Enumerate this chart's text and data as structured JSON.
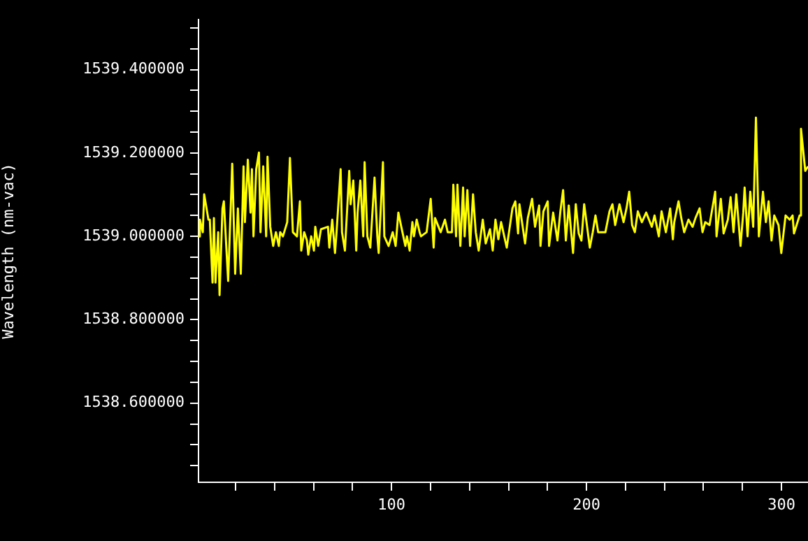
{
  "chart_data": {
    "type": "line",
    "ylabel": "Wavelength (nm-vac)",
    "marker": "none",
    "xlim": [
      1,
      313.6
    ],
    "xticks": [
      {
        "value": 20,
        "label": null
      },
      {
        "value": 40,
        "label": null
      },
      {
        "value": 60,
        "label": null
      },
      {
        "value": 80,
        "label": null
      },
      100,
      {
        "value": 120,
        "label": null
      },
      {
        "value": 140,
        "label": null
      },
      {
        "value": 160,
        "label": null
      },
      {
        "value": 180,
        "label": null
      },
      200,
      {
        "value": 220,
        "label": null
      },
      {
        "value": 240,
        "label": null
      },
      {
        "value": 260,
        "label": null
      },
      {
        "value": 280,
        "label": null
      },
      300
    ],
    "ylim": [
      1538.41,
      1539.52
    ],
    "yticks": [
      {
        "value": 1538.45,
        "label": null
      },
      {
        "value": 1538.5,
        "label": null
      },
      {
        "value": 1538.55,
        "label": null
      },
      {
        "value": 1538.6,
        "label": "1538.600000"
      },
      {
        "value": 1538.65,
        "label": null
      },
      {
        "value": 1538.7,
        "label": null
      },
      {
        "value": 1538.75,
        "label": null
      },
      {
        "value": 1538.8,
        "label": "1538.800000"
      },
      {
        "value": 1538.85,
        "label": null
      },
      {
        "value": 1538.9,
        "label": null
      },
      {
        "value": 1538.95,
        "label": null
      },
      {
        "value": 1539.0,
        "label": "1539.000000"
      },
      {
        "value": 1539.05,
        "label": null
      },
      {
        "value": 1539.1,
        "label": null
      },
      {
        "value": 1539.15,
        "label": null
      },
      {
        "value": 1539.2,
        "label": "1539.200000"
      },
      {
        "value": 1539.25,
        "label": null
      },
      {
        "value": 1539.3,
        "label": null
      },
      {
        "value": 1539.35,
        "label": null
      },
      {
        "value": 1539.4,
        "label": "1539.400000"
      },
      {
        "value": 1539.45,
        "label": null
      },
      {
        "value": 1539.5,
        "label": null
      }
    ],
    "x": [
      1.0,
      1.7,
      3.2,
      3.9,
      6.1,
      6.8,
      8.2,
      8.9,
      9.7,
      11.1,
      11.8,
      13.3,
      14.0,
      16.2,
      18.3,
      19.8,
      21.2,
      22.7,
      24.1,
      24.8,
      26.3,
      27.7,
      28.4,
      29.2,
      30.6,
      32.0,
      32.8,
      34.2,
      35.7,
      36.4,
      37.8,
      39.3,
      40.7,
      42.2,
      42.9,
      44.3,
      46.5,
      47.9,
      49.4,
      51.5,
      53.0,
      53.7,
      55.2,
      56.6,
      57.3,
      58.8,
      60.2,
      60.9,
      62.4,
      63.8,
      67.4,
      68.1,
      69.6,
      71.0,
      71.8,
      73.9,
      74.6,
      76.1,
      78.3,
      79.0,
      80.4,
      81.9,
      82.6,
      84.0,
      85.5,
      86.2,
      87.6,
      89.1,
      91.3,
      92.7,
      93.4,
      95.6,
      96.3,
      98.5,
      100.6,
      102.1,
      103.5,
      105.0,
      107.1,
      107.9,
      109.3,
      110.7,
      111.5,
      112.9,
      114.4,
      115.1,
      118.0,
      120.1,
      121.6,
      122.3,
      125.2,
      127.4,
      128.8,
      131.0,
      131.7,
      133.1,
      133.8,
      135.3,
      136.7,
      137.5,
      138.9,
      140.3,
      141.8,
      143.2,
      144.7,
      146.8,
      148.3,
      150.5,
      151.9,
      153.3,
      154.8,
      156.2,
      159.1,
      162.0,
      163.5,
      164.9,
      165.6,
      168.5,
      169.9,
      172.1,
      173.6,
      175.7,
      176.4,
      177.9,
      180.1,
      180.8,
      182.9,
      185.1,
      186.6,
      188.0,
      189.4,
      190.9,
      193.1,
      194.5,
      196.0,
      197.4,
      198.8,
      201.7,
      203.2,
      204.6,
      206.0,
      209.7,
      211.8,
      213.3,
      214.7,
      216.9,
      219.0,
      220.5,
      221.9,
      223.4,
      224.8,
      226.3,
      228.4,
      230.6,
      233.5,
      234.9,
      237.1,
      238.5,
      240.7,
      242.9,
      244.3,
      245.0,
      247.2,
      248.6,
      250.1,
      252.3,
      254.4,
      255.9,
      258.0,
      259.5,
      260.9,
      263.1,
      266.0,
      266.7,
      268.9,
      270.3,
      272.5,
      273.9,
      275.4,
      276.8,
      279.0,
      280.4,
      281.1,
      282.6,
      284.0,
      285.5,
      286.9,
      288.4,
      290.5,
      292.0,
      293.4,
      294.9,
      296.3,
      298.5,
      299.9,
      302.1,
      304.2,
      305.7,
      306.4,
      309.3,
      310.0,
      312.2,
      313.6
    ],
    "series": [
      {
        "color": "#ffff00",
        "values": [
          1539.0,
          1539.04,
          1539.01,
          1539.101,
          1539.04,
          1539.04,
          1538.889,
          1539.044,
          1538.889,
          1539.01,
          1538.859,
          1539.067,
          1539.084,
          1538.893,
          1539.174,
          1538.91,
          1539.067,
          1538.91,
          1539.168,
          1539.034,
          1539.184,
          1539.057,
          1539.161,
          1539.0,
          1539.161,
          1539.201,
          1539.01,
          1539.168,
          1539.0,
          1539.191,
          1539.023,
          1538.977,
          1539.01,
          1538.977,
          1539.01,
          1539.0,
          1539.034,
          1539.188,
          1539.01,
          1539.0,
          1539.084,
          1538.966,
          1539.01,
          1538.99,
          1538.956,
          1539.0,
          1538.966,
          1539.023,
          1538.977,
          1539.017,
          1539.023,
          1538.973,
          1539.04,
          1538.96,
          1539.01,
          1539.161,
          1539.01,
          1538.966,
          1539.157,
          1539.077,
          1539.134,
          1538.966,
          1539.057,
          1539.134,
          1539.0,
          1539.178,
          1539.0,
          1538.973,
          1539.141,
          1539.0,
          1538.96,
          1539.178,
          1539.0,
          1538.977,
          1539.01,
          1538.977,
          1539.057,
          1539.023,
          1538.977,
          1539.0,
          1538.966,
          1539.034,
          1539.0,
          1539.04,
          1539.01,
          1539.0,
          1539.01,
          1539.09,
          1538.973,
          1539.044,
          1539.01,
          1539.04,
          1539.01,
          1539.01,
          1539.124,
          1539.0,
          1539.124,
          1538.977,
          1539.117,
          1539.0,
          1539.111,
          1538.977,
          1539.101,
          1539.01,
          1538.966,
          1539.04,
          1538.983,
          1539.017,
          1538.966,
          1539.04,
          1538.993,
          1539.034,
          1538.973,
          1539.067,
          1539.084,
          1539.007,
          1539.077,
          1538.983,
          1539.044,
          1539.09,
          1539.023,
          1539.074,
          1538.977,
          1539.06,
          1539.084,
          1538.977,
          1539.057,
          1538.99,
          1539.06,
          1539.111,
          1538.99,
          1539.074,
          1538.96,
          1539.077,
          1539.007,
          1538.99,
          1539.077,
          1538.973,
          1539.01,
          1539.05,
          1539.01,
          1539.01,
          1539.06,
          1539.077,
          1539.027,
          1539.077,
          1539.034,
          1539.067,
          1539.107,
          1539.027,
          1539.01,
          1539.06,
          1539.034,
          1539.057,
          1539.023,
          1539.05,
          1539.0,
          1539.06,
          1539.01,
          1539.067,
          1538.993,
          1539.034,
          1539.084,
          1539.044,
          1539.01,
          1539.04,
          1539.023,
          1539.044,
          1539.067,
          1539.01,
          1539.034,
          1539.027,
          1539.107,
          1539.0,
          1539.09,
          1539.007,
          1539.04,
          1539.094,
          1539.01,
          1539.101,
          1538.977,
          1539.057,
          1539.117,
          1539.0,
          1539.107,
          1539.023,
          1539.285,
          1539.0,
          1539.107,
          1539.034,
          1539.084,
          1538.99,
          1539.05,
          1539.027,
          1538.96,
          1539.05,
          1539.04,
          1539.05,
          1539.007,
          1539.05,
          1539.258,
          1539.157,
          1539.168
        ]
      }
    ]
  }
}
